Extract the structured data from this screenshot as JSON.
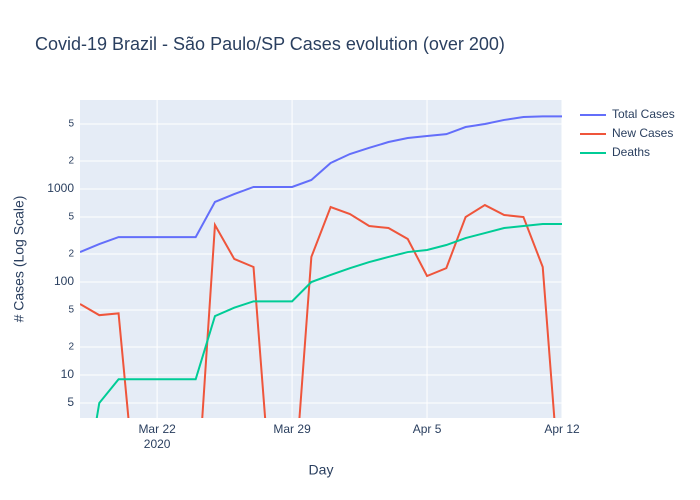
{
  "chart_data": {
    "type": "line",
    "title": "Covid-19 Brazil - São Paulo/SP Cases evolution (over 200)",
    "x_label": "Day",
    "y_label": "# Cases (Log Scale)",
    "log_y": true,
    "grid": true,
    "legend_position": "top-right",
    "x": [
      "2020-03-18",
      "2020-03-19",
      "2020-03-20",
      "2020-03-21",
      "2020-03-22",
      "2020-03-23",
      "2020-03-24",
      "2020-03-25",
      "2020-03-26",
      "2020-03-27",
      "2020-03-28",
      "2020-03-29",
      "2020-03-30",
      "2020-03-31",
      "2020-04-01",
      "2020-04-02",
      "2020-04-03",
      "2020-04-04",
      "2020-04-05",
      "2020-04-06",
      "2020-04-07",
      "2020-04-08",
      "2020-04-09",
      "2020-04-10",
      "2020-04-11",
      "2020-04-12"
    ],
    "xlim": [
      "2020-03-18",
      "2020-04-12"
    ],
    "xticks": [
      {
        "value": "2020-03-22",
        "label": "Mar 22\n2020"
      },
      {
        "value": "2020-03-29",
        "label": "Mar 29"
      },
      {
        "value": "2020-04-05",
        "label": "Apr 5"
      },
      {
        "value": "2020-04-12",
        "label": "Apr 12"
      }
    ],
    "ylim": [
      3.45,
      9060
    ],
    "yticks": [
      5,
      10,
      {
        "value": 20,
        "label": "2"
      },
      {
        "value": 50,
        "label": "5"
      },
      100,
      {
        "value": 200,
        "label": "2"
      },
      {
        "value": 500,
        "label": "5"
      },
      1000,
      {
        "value": 2000,
        "label": "2"
      },
      {
        "value": 5000,
        "label": "5"
      }
    ],
    "series": [
      {
        "name": "Total Cases",
        "color": "#636efa",
        "values": [
          210,
          256,
          304,
          304,
          304,
          304,
          304,
          727,
          883,
          1052,
          1052,
          1052,
          1251,
          1906,
          2378,
          2770,
          3200,
          3540,
          3720,
          3890,
          4640,
          5000,
          5530,
          5940,
          6040,
          6040
        ]
      },
      {
        "name": "New Cases",
        "color": "#ef553b",
        "values": [
          58,
          44,
          46,
          0,
          0,
          0,
          0,
          410,
          177,
          145,
          0,
          0,
          186,
          640,
          538,
          400,
          381,
          290,
          116,
          141,
          500,
          672,
          525,
          500,
          145,
          0
        ]
      },
      {
        "name": "Deaths",
        "color": "#00cc96",
        "values": [
          0,
          5,
          9,
          9,
          9,
          9,
          9,
          43,
          53,
          62,
          62,
          62,
          100,
          119,
          141,
          164,
          186,
          210,
          221,
          250,
          297,
          336,
          381,
          400,
          420,
          420
        ]
      }
    ]
  }
}
